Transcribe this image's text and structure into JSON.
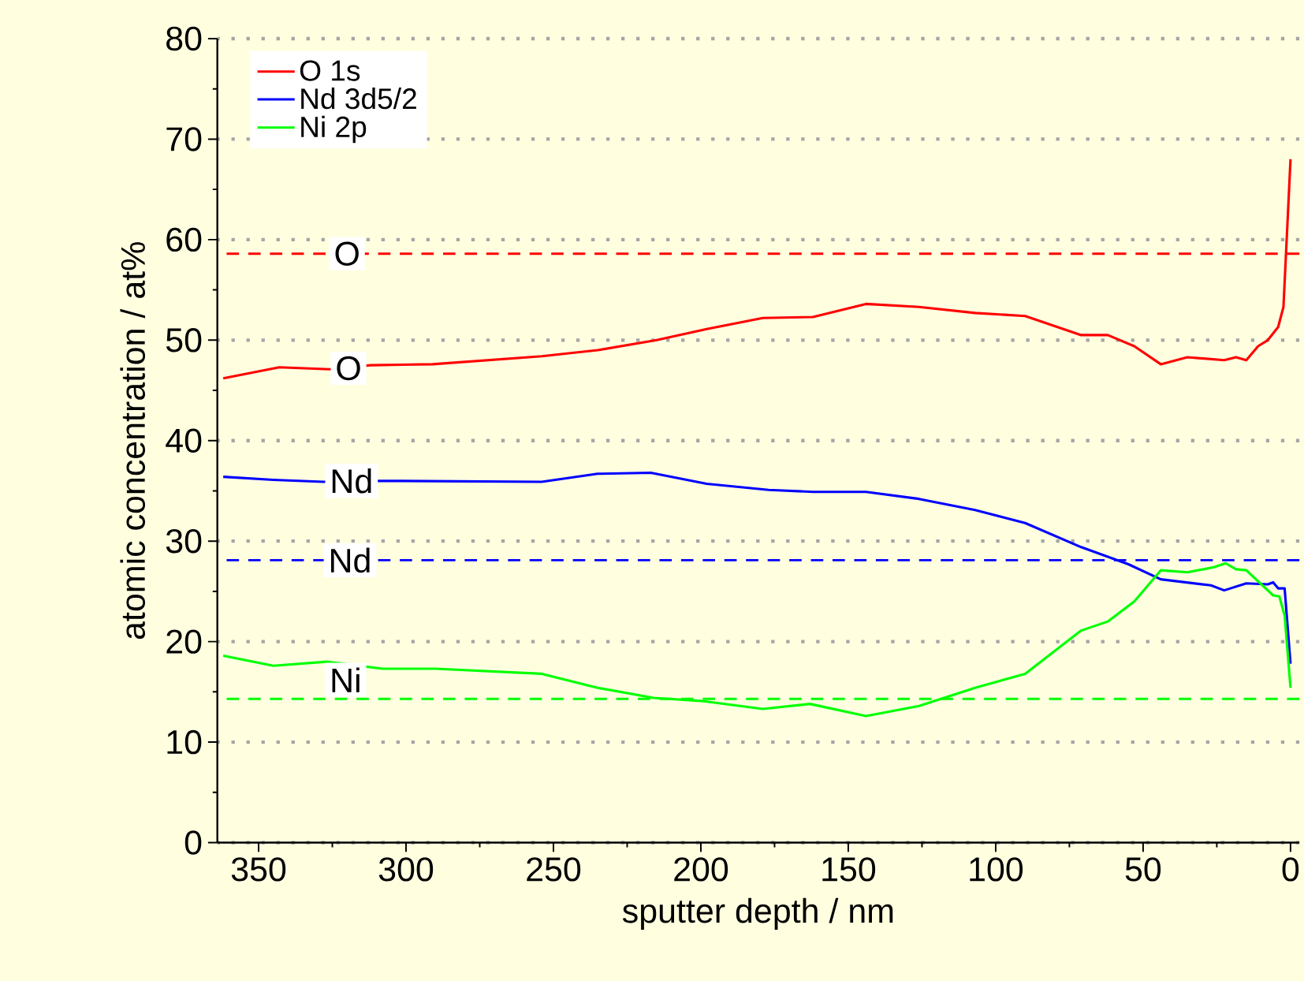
{
  "chart_data": {
    "type": "line",
    "xlabel": "sputter depth / nm",
    "ylabel": "atomic concentration / at%",
    "xlim": [
      364,
      -3
    ],
    "xticks": [
      350,
      300,
      250,
      200,
      150,
      100,
      50,
      0
    ],
    "ylim": [
      0,
      80
    ],
    "yticks": [
      0,
      10,
      20,
      30,
      40,
      50,
      60,
      70,
      80
    ],
    "grid": "y",
    "legend": "top left",
    "marker": "none",
    "line_style": "solid",
    "series": [
      {
        "name": "O 1s",
        "color": "#ff0000",
        "x": [
          362,
          343,
          326,
          312,
          291,
          254,
          235,
          215,
          198,
          179,
          162,
          144,
          126,
          107,
          90,
          71,
          62,
          53,
          44,
          35,
          22.5,
          18.5,
          15,
          11,
          7.7,
          4.2,
          2.4,
          0
        ],
        "values": [
          46.2,
          47.3,
          47.1,
          47.5,
          47.6,
          48.4,
          49.0,
          50.0,
          51.1,
          52.2,
          52.3,
          53.6,
          53.3,
          52.7,
          52.4,
          50.5,
          50.5,
          49.4,
          47.6,
          48.3,
          48.0,
          48.3,
          48.0,
          49.4,
          50.0,
          51.3,
          53.3,
          68.0
        ]
      },
      {
        "name": "Nd 3d5/2",
        "color": "#0000ff",
        "x": [
          362,
          345,
          328,
          308,
          254,
          235,
          217,
          198,
          177,
          162,
          144,
          126,
          107,
          90,
          71,
          55,
          44,
          27,
          22.5,
          15,
          7.7,
          5.9,
          4.2,
          2.0,
          0
        ],
        "values": [
          36.4,
          36.1,
          35.9,
          36.0,
          35.9,
          36.7,
          36.8,
          35.7,
          35.1,
          34.9,
          34.9,
          34.2,
          33.1,
          31.8,
          29.4,
          27.7,
          26.2,
          25.6,
          25.1,
          25.8,
          25.7,
          25.9,
          25.3,
          25.3,
          17.8
        ]
      },
      {
        "name": "Ni 2p",
        "color": "#00ff00",
        "x": [
          362,
          345,
          327,
          308,
          290,
          254,
          235,
          216,
          200,
          179,
          163,
          144,
          126,
          107,
          90,
          71,
          62,
          53,
          44,
          35,
          26,
          22,
          18.5,
          15,
          5.9,
          3.8,
          2.0,
          0
        ],
        "values": [
          18.6,
          17.6,
          18.0,
          17.3,
          17.3,
          16.8,
          15.4,
          14.4,
          14.1,
          13.3,
          13.8,
          12.6,
          13.6,
          15.4,
          16.8,
          21.1,
          22.0,
          24.0,
          27.1,
          26.9,
          27.4,
          27.8,
          27.2,
          27.1,
          24.6,
          24.5,
          22.6,
          15.4
        ]
      }
    ],
    "ref_lines": [
      {
        "axis": "y",
        "value": 58.6,
        "color": "#ff0000",
        "line_style": "dashed"
      },
      {
        "axis": "y",
        "value": 28.1,
        "color": "#0000ff",
        "line_style": "dashed"
      },
      {
        "axis": "y",
        "value": 14.3,
        "color": "#00ff00",
        "line_style": "dashed"
      }
    ],
    "annotations": [
      {
        "text": "O",
        "x": 320,
        "y": 58.6
      },
      {
        "text": "O",
        "x": 319.5,
        "y": 47.2
      },
      {
        "text": "Nd",
        "x": 318.5,
        "y": 36.0
      },
      {
        "text": "Nd",
        "x": 319,
        "y": 28.1
      },
      {
        "text": "Ni",
        "x": 320.5,
        "y": 16.2
      }
    ]
  }
}
